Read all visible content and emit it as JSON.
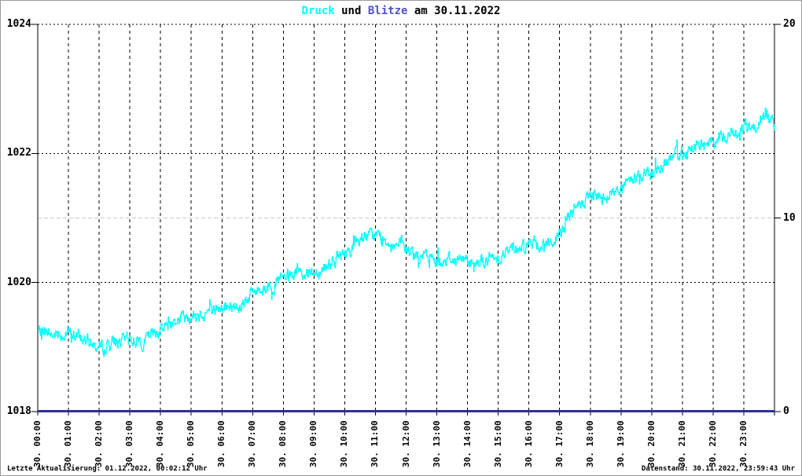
{
  "title": {
    "part_druck": "Druck",
    "part_und": " und ",
    "part_blitze": "Blitze",
    "part_date": " am 30.11.2022"
  },
  "footer": {
    "left": "Letzte Aktualisierung: 01.12.2022, 00:02:12 Uhr",
    "right": "Datenstand: 30.11.2022, 23:59:43 Uhr"
  },
  "colors": {
    "druck_accent": "#00ffff",
    "blitze_accent": "#5252cf",
    "blitze_line": "#2e2e99",
    "grid": "#000000",
    "grid_gray": "#c8c8c8",
    "background": "#ffffff"
  },
  "chart_data": {
    "type": "line",
    "title": "Druck und Blitze am 30.11.2022",
    "x_axis": {
      "range_hours": [
        0,
        24
      ],
      "tick_labels": [
        "30. 00:00",
        "30. 01:00",
        "30. 02:00",
        "30. 03:00",
        "30. 04:00",
        "30. 05:00",
        "30. 06:00",
        "30. 07:00",
        "30. 08:00",
        "30. 09:00",
        "30. 10:00",
        "30. 11:00",
        "30. 12:00",
        "30. 13:00",
        "30. 14:00",
        "30. 15:00",
        "30. 16:00",
        "30. 17:00",
        "30. 18:00",
        "30. 19:00",
        "30. 20:00",
        "30. 21:00",
        "30. 22:00",
        "30. 23:00"
      ],
      "gridlines": "dashed vertical each hour"
    },
    "left_axis": {
      "range": [
        1018,
        1024
      ],
      "ticks": [
        1018,
        1020,
        1022,
        1024
      ],
      "series_name": "Druck"
    },
    "right_axis": {
      "range": [
        0,
        20
      ],
      "ticks": [
        0,
        10,
        20
      ],
      "series_name": "Blitze",
      "gray_reference_line_at": 10
    },
    "series": [
      {
        "name": "Druck",
        "axis": "left",
        "color": "#00ffff",
        "style": "noisy 1-minute step line, noise band ~±0.13",
        "anchor_hours": [
          0,
          0.5,
          1,
          1.5,
          2,
          2.5,
          3,
          3.5,
          4,
          4.5,
          5,
          5.5,
          6,
          6.5,
          7,
          7.5,
          8,
          8.5,
          9,
          9.5,
          10,
          10.5,
          11,
          11.5,
          12,
          12.5,
          13,
          13.5,
          14,
          14.5,
          15,
          15.5,
          16,
          16.5,
          17,
          17.25,
          17.5,
          18,
          18.5,
          19,
          19.5,
          20,
          20.5,
          21,
          21.5,
          22,
          22.5,
          23,
          23.5,
          23.8,
          24
        ],
        "anchor_values": [
          1019.25,
          1019.18,
          1019.22,
          1019.12,
          1018.98,
          1019.08,
          1019.12,
          1019.1,
          1019.3,
          1019.42,
          1019.5,
          1019.55,
          1019.6,
          1019.62,
          1019.85,
          1019.95,
          1020.05,
          1020.15,
          1020.15,
          1020.3,
          1020.45,
          1020.68,
          1020.72,
          1020.63,
          1020.5,
          1020.4,
          1020.35,
          1020.37,
          1020.35,
          1020.32,
          1020.4,
          1020.55,
          1020.6,
          1020.6,
          1020.7,
          1021.0,
          1021.15,
          1021.3,
          1021.35,
          1021.45,
          1021.65,
          1021.7,
          1021.88,
          1022.0,
          1022.13,
          1022.18,
          1022.28,
          1022.38,
          1022.48,
          1022.55,
          1022.4
        ]
      },
      {
        "name": "Blitze",
        "axis": "right",
        "color": "#2e2e99",
        "style": "thick flat line",
        "constant_value": 0
      }
    ]
  }
}
